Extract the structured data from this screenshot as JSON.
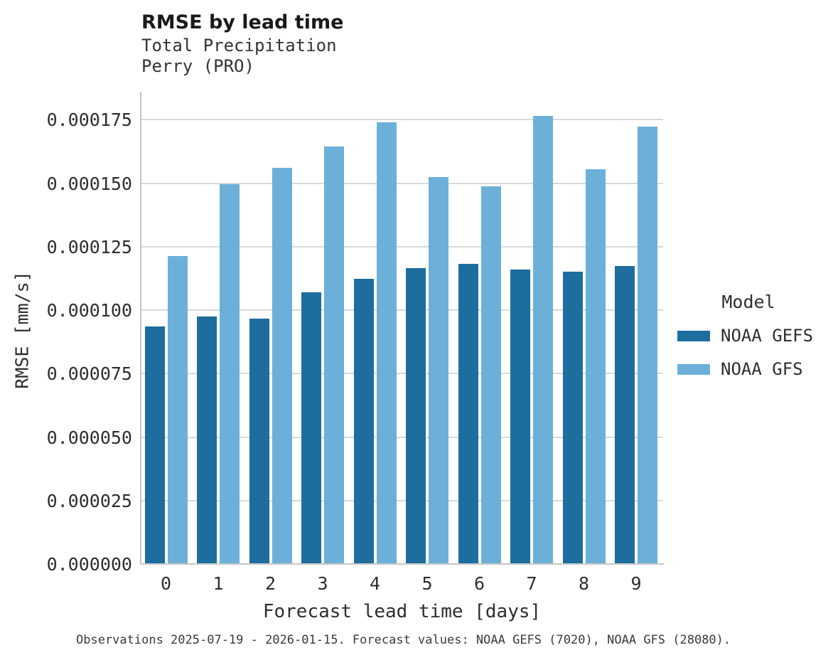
{
  "header": {
    "title": "RMSE by lead time",
    "subtitle_line1": "Total Precipitation",
    "subtitle_line2": "Perry (PRO)"
  },
  "legend": {
    "title": "Model",
    "entries": [
      {
        "label": "NOAA GEFS",
        "color": "#1d6d9e"
      },
      {
        "label": "NOAA GFS",
        "color": "#6cb0d9"
      }
    ]
  },
  "caption": "Observations 2025-07-19 - 2026-01-15. Forecast values: NOAA GEFS (7020), NOAA GFS (28080).",
  "chart_data": {
    "type": "bar",
    "title": "RMSE by lead time",
    "subtitle": "Total Precipitation — Perry (PRO)",
    "xlabel": "Forecast lead time [days]",
    "ylabel": "RMSE [mm/s]",
    "categories": [
      "0",
      "1",
      "2",
      "3",
      "4",
      "5",
      "6",
      "7",
      "8",
      "9"
    ],
    "series": [
      {
        "name": "NOAA GEFS",
        "color": "#1d6d9e",
        "values": [
          9.36e-05,
          9.76e-05,
          9.66e-05,
          0.000107,
          0.0001124,
          0.0001164,
          0.0001181,
          0.000116,
          0.000115,
          0.0001173
        ]
      },
      {
        "name": "NOAA GFS",
        "color": "#6cb0d9",
        "values": [
          0.0001213,
          0.0001496,
          0.000156,
          0.0001644,
          0.000174,
          0.0001525,
          0.0001488,
          0.0001766,
          0.0001556,
          0.0001724
        ]
      }
    ],
    "ylim": [
      0,
      0.000186
    ],
    "yticks": {
      "values": [
        0,
        2.5e-05,
        5e-05,
        7.5e-05,
        0.0001,
        0.000125,
        0.00015,
        0.000175
      ],
      "labels": [
        "0.000000",
        "0.000025",
        "0.000050",
        "0.000075",
        "0.000100",
        "0.000125",
        "0.000150",
        "0.000175"
      ]
    },
    "grid": "horizontal",
    "legend_position": "right",
    "legend_title": "Model"
  }
}
